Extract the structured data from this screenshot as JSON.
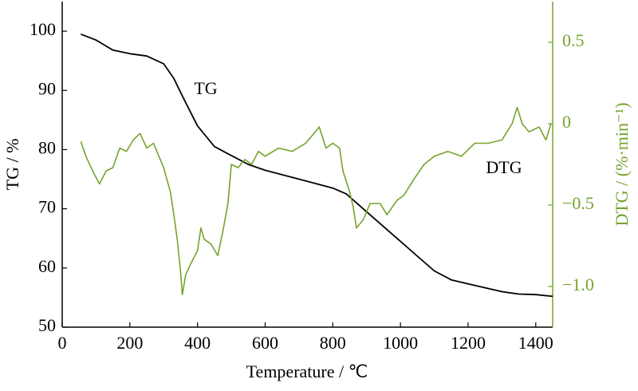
{
  "chart_data": {
    "type": "line",
    "xlabel": "Temperature / ℃",
    "ylabel": "TG / %",
    "y2label": "DTG / (%·min⁻¹)",
    "annotations": [
      "TG",
      "DTG"
    ],
    "xlim": [
      0,
      1450
    ],
    "xticks": [
      0,
      200,
      400,
      600,
      800,
      1000,
      1200,
      1400
    ],
    "ylim": [
      50,
      105
    ],
    "yticks": [
      50,
      60,
      70,
      80,
      90,
      100
    ],
    "y2lim": [
      -1.25,
      0.75
    ],
    "y2ticks": [
      {
        "value": -1,
        "label": "−1.0"
      },
      {
        "value": -0.5,
        "label": "−0.5"
      },
      0,
      0.5
    ],
    "y2color": "#76a32d",
    "series": [
      {
        "name": "TG",
        "color": "#000000",
        "x": [
          55,
          100,
          150,
          200,
          250,
          300,
          330,
          360,
          400,
          450,
          500,
          550,
          600,
          700,
          800,
          840,
          880,
          950,
          1000,
          1050,
          1100,
          1150,
          1200,
          1300,
          1350,
          1400,
          1450
        ],
        "values": [
          99.5,
          98.5,
          96.8,
          96.2,
          95.8,
          94.5,
          92,
          88.5,
          84,
          80.5,
          79,
          77.5,
          76.5,
          75,
          73.5,
          72.5,
          70.5,
          67,
          64.5,
          62,
          59.5,
          58,
          57.3,
          56,
          55.6,
          55.5,
          55.2
        ]
      },
      {
        "name": "DTG",
        "color": "#76a32d",
        "axis": "y2",
        "x": [
          55,
          70,
          90,
          110,
          130,
          150,
          170,
          190,
          210,
          230,
          250,
          270,
          290,
          300,
          320,
          330,
          340,
          350,
          355,
          365,
          380,
          400,
          410,
          420,
          440,
          460,
          475,
          490,
          500,
          520,
          540,
          560,
          580,
          600,
          640,
          680,
          720,
          760,
          780,
          800,
          820,
          830,
          850,
          860,
          870,
          890,
          910,
          940,
          960,
          990,
          1010,
          1040,
          1070,
          1100,
          1140,
          1180,
          1220,
          1260,
          1300,
          1330,
          1345,
          1360,
          1380,
          1410,
          1430,
          1445
        ],
        "values": [
          -0.11,
          -0.2,
          -0.29,
          -0.37,
          -0.29,
          -0.27,
          -0.15,
          -0.17,
          -0.1,
          -0.06,
          -0.15,
          -0.12,
          -0.22,
          -0.27,
          -0.42,
          -0.56,
          -0.71,
          -0.91,
          -1.05,
          -0.93,
          -0.86,
          -0.78,
          -0.64,
          -0.71,
          -0.74,
          -0.81,
          -0.66,
          -0.49,
          -0.25,
          -0.27,
          -0.22,
          -0.25,
          -0.17,
          -0.2,
          -0.15,
          -0.17,
          -0.12,
          -0.02,
          -0.15,
          -0.12,
          -0.15,
          -0.29,
          -0.42,
          -0.51,
          -0.64,
          -0.59,
          -0.49,
          -0.49,
          -0.56,
          -0.47,
          -0.44,
          -0.34,
          -0.25,
          -0.2,
          -0.17,
          -0.2,
          -0.12,
          -0.12,
          -0.1,
          0,
          0.1,
          0,
          -0.05,
          -0.02,
          -0.1,
          0
        ]
      }
    ]
  }
}
